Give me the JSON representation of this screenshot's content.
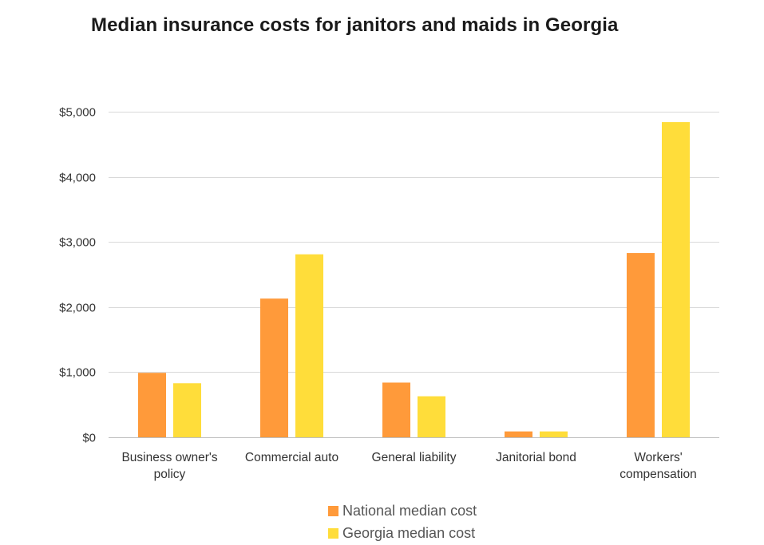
{
  "chart_data": {
    "type": "bar",
    "title": "Median insurance costs for janitors and maids in Georgia",
    "xlabel": "",
    "ylabel": "",
    "categories": [
      [
        "Business owner's",
        "policy"
      ],
      [
        "Commercial auto"
      ],
      [
        "General liability"
      ],
      [
        "Janitorial bond"
      ],
      [
        "Workers'",
        "compensation"
      ]
    ],
    "series": [
      {
        "name": "National median cost",
        "color": "#FF9A3A",
        "values": [
          990,
          2130,
          840,
          90,
          2830
        ]
      },
      {
        "name": "Georgia median cost",
        "color": "#FFDD3A",
        "values": [
          830,
          2810,
          630,
          90,
          4840
        ]
      }
    ],
    "ylim": [
      0,
      5000
    ],
    "yticks": [
      0,
      1000,
      2000,
      3000,
      4000,
      5000
    ],
    "ytick_labels": [
      "$0",
      "$1,000",
      "$2,000",
      "$3,000",
      "$4,000",
      "$5,000"
    ],
    "grid": true,
    "gridline_color": "#d9d9d9",
    "legend_position": "bottom"
  }
}
